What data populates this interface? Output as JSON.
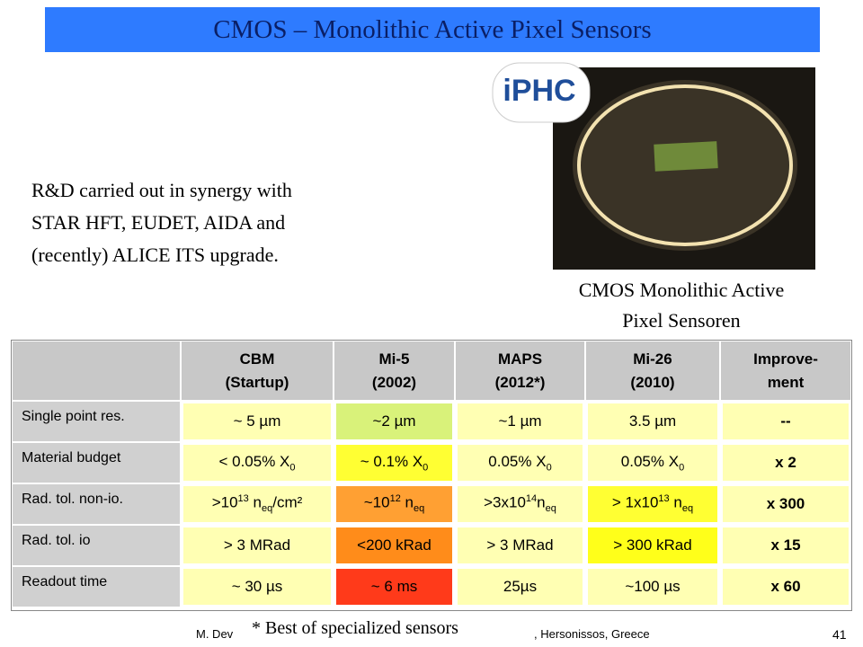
{
  "header": {
    "title": "CMOS – Monolithic Active Pixel Sensors"
  },
  "logo": "iPHC",
  "intro": [
    "R&D carried out in synergy with",
    "STAR HFT, EUDET, AIDA and",
    "(recently) ALICE ITS upgrade."
  ],
  "caption": [
    "CMOS Monolithic Active",
    "Pixel Sensoren"
  ],
  "table": {
    "header": [
      [
        "CBM",
        "(Startup)"
      ],
      [
        "Mi-5",
        "(2002)"
      ],
      [
        "MAPS",
        "(2012*)"
      ],
      [
        "Mi-26",
        "(2010)"
      ],
      [
        "Improve-",
        "ment"
      ]
    ],
    "rows": [
      {
        "label": "Single point res.",
        "cells": [
          [
            "~ 5 µm"
          ],
          [
            "~2 µm"
          ],
          [
            "~1 µm"
          ],
          [
            "3.5 µm"
          ],
          [
            "--"
          ]
        ],
        "fills": [
          "#ffffb3",
          "#d9f27a",
          "#ffffb3",
          "#ffffb3",
          "#ffffb3"
        ]
      },
      {
        "label": "Material budget",
        "cells": [
          [
            "< 0.05% X",
            {
              "sub": "0"
            }
          ],
          [
            "~ 0.1% X",
            {
              "sub": "0"
            }
          ],
          [
            "0.05% X",
            {
              "sub": "0"
            }
          ],
          [
            "0.05% X",
            {
              "sub": "0"
            }
          ],
          [
            "x 2"
          ]
        ],
        "fills": [
          "#ffffb3",
          "#ffff33",
          "#ffffb3",
          "#ffffb3",
          "#ffffb3"
        ]
      },
      {
        "label": "Rad. tol. non-io.",
        "cells": [
          [
            ">10",
            {
              "sup": "13"
            },
            " n",
            {
              "sub": "eq"
            },
            "/cm²"
          ],
          [
            "~10",
            {
              "sup": "12"
            },
            " n",
            {
              "sub": "eq"
            }
          ],
          [
            ">3x10",
            {
              "sup": "14"
            },
            "n",
            {
              "sub": "eq"
            }
          ],
          [
            "> 1x10",
            {
              "sup": "13"
            },
            " n",
            {
              "sub": "eq"
            }
          ],
          [
            "x 300"
          ]
        ],
        "fills": [
          "#ffffb3",
          "#ffa033",
          "#ffffb3",
          "#ffff33",
          "#ffffb3"
        ]
      },
      {
        "label": "Rad. tol. io",
        "cells": [
          [
            "> 3 MRad"
          ],
          [
            "<200 kRad"
          ],
          [
            "> 3 MRad"
          ],
          [
            "> 300 kRad"
          ],
          [
            "x 15"
          ]
        ],
        "fills": [
          "#ffffb3",
          "#ff8c1a",
          "#ffffb3",
          "#ffff1a",
          "#ffffb3"
        ]
      },
      {
        "label": "Readout time",
        "cells": [
          [
            "~ 30 µs"
          ],
          [
            "~ 6 ms"
          ],
          [
            "25µs"
          ],
          [
            "~100 µs"
          ],
          [
            "x 60"
          ]
        ],
        "fills": [
          "#ffffb3",
          "#ff3a1a",
          "#ffffb3",
          "#ffffb3",
          "#ffffb3"
        ]
      }
    ]
  },
  "footer": {
    "author": "M. Dev",
    "note": "* Best of specialized sensors",
    "place": ", Hersonissos, Greece",
    "page": "41"
  }
}
